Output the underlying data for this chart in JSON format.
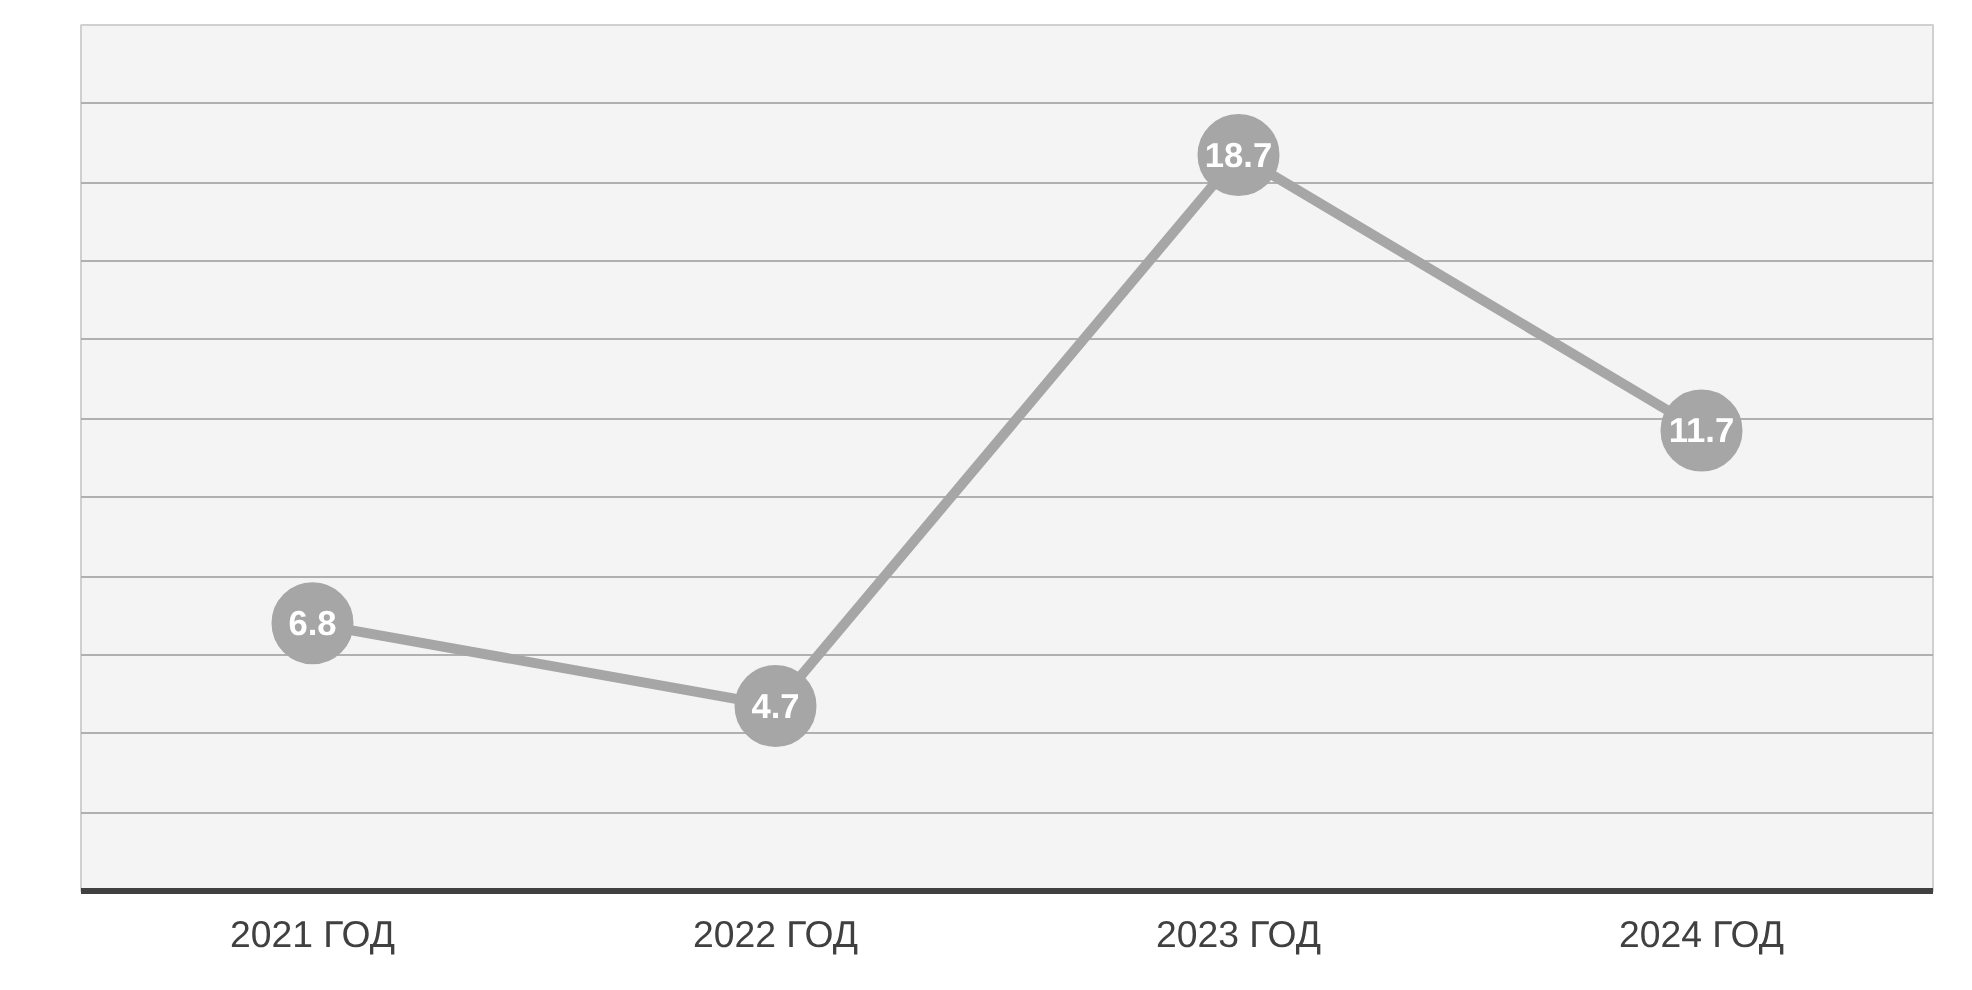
{
  "chart_data": {
    "type": "line",
    "categories": [
      "2021 ГОД",
      "2022 ГОД",
      "2023 ГОД",
      "2024 ГОД"
    ],
    "series": [
      {
        "color": "#a6a6a6",
        "values": [
          6.8,
          4.7,
          18.7,
          11.7
        ]
      }
    ],
    "ylim": [
      0,
      22
    ],
    "yticks": [
      {
        "value": 0,
        "label": null
      },
      {
        "value": 2,
        "label": null
      },
      {
        "value": 4,
        "label": null
      },
      {
        "value": 6,
        "label": null
      },
      {
        "value": 8,
        "label": null
      },
      {
        "value": 10,
        "label": null
      },
      {
        "value": 12,
        "label": null
      },
      {
        "value": 14,
        "label": null
      },
      {
        "value": 16,
        "label": null
      },
      {
        "value": 18,
        "label": null
      },
      {
        "value": 20,
        "label": null
      },
      {
        "value": 22,
        "label": null
      }
    ],
    "tick_labels": "x",
    "grid": "y",
    "marker": "circle",
    "line_style": "solid",
    "data_labels": true
  }
}
